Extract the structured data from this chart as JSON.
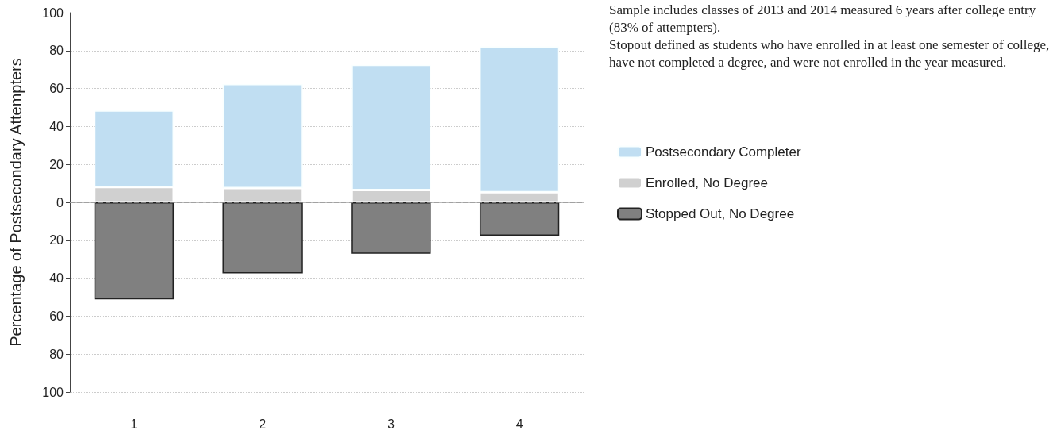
{
  "chart_data": {
    "type": "bar",
    "stacked": true,
    "ylabel": "Percentage of Postsecondary Attempters",
    "categories": [
      "1",
      "2",
      "3",
      "4"
    ],
    "series": [
      {
        "name": "Enrolled, No Degree",
        "color": "#d0d0d0",
        "values": [
          8.1,
          7.5,
          6.5,
          5.3
        ]
      },
      {
        "name": "Postsecondary Completer",
        "color": "#c0def2",
        "values": [
          40.3,
          54.8,
          66.0,
          76.9
        ]
      },
      {
        "name": "Stopped Out, No Degree",
        "color": "#808080",
        "values": [
          -51.2,
          -37.4,
          -27.1,
          -17.6
        ]
      }
    ],
    "ylim": [
      -100,
      100
    ],
    "yticks": [
      {
        "value": -100,
        "label": "100"
      },
      {
        "value": -80,
        "label": "80"
      },
      {
        "value": -60,
        "label": "60"
      },
      {
        "value": -40,
        "label": "40"
      },
      {
        "value": -20,
        "label": "20"
      },
      0,
      20,
      40,
      60,
      80,
      100
    ],
    "grid": "y",
    "legend": "right",
    "ref_lines": [
      {
        "axis": "y",
        "value": 0,
        "color": "#999999",
        "line_style": "dashed"
      }
    ],
    "annotations": [
      "Sample includes classes of 2013 and 2014 measured 6 years after college entry (83% of attempters).",
      "Stopout defined as students who have enrolled in at least one semester of college, have not completed a degree, and were not enrolled in the year measured."
    ]
  }
}
